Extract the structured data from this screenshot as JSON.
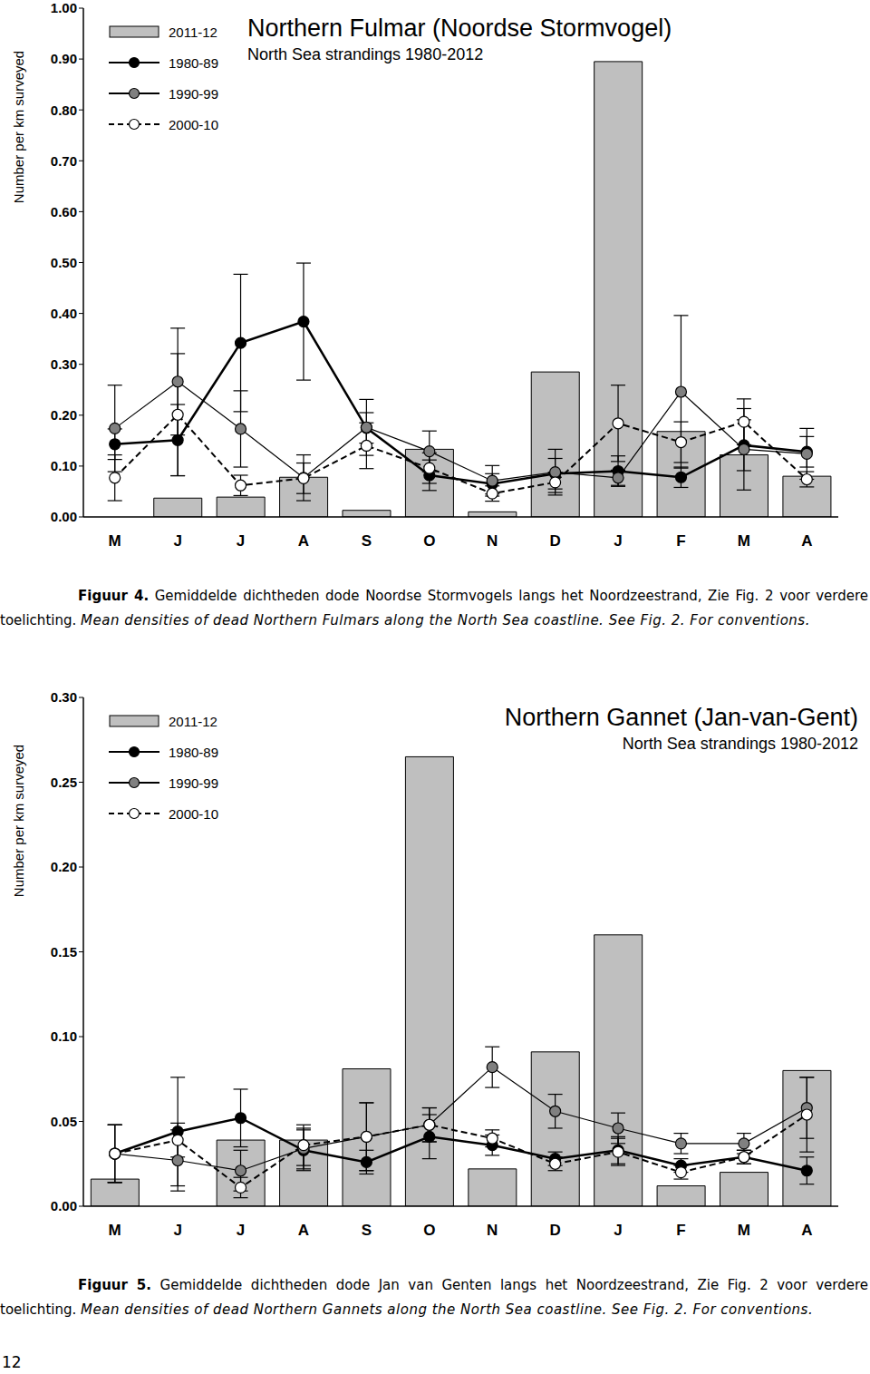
{
  "chart_data": [
    {
      "type": "bar",
      "title": "Northern Fulmar (Noordse Stormvogel)",
      "subtitle": "North Sea strandings 1980-2012",
      "y_label": "Number per km surveyed",
      "categories": [
        "M",
        "J",
        "J",
        "A",
        "S",
        "O",
        "N",
        "D",
        "J",
        "F",
        "M",
        "A"
      ],
      "ylim": [
        0,
        1
      ],
      "yticks": [
        {
          "value": 0,
          "label": "0.00"
        },
        {
          "value": 0.1,
          "label": "0.10"
        },
        {
          "value": 0.2,
          "label": "0.20"
        },
        {
          "value": 0.3,
          "label": "0.30"
        },
        {
          "value": 0.4,
          "label": "0.40"
        },
        {
          "value": 0.5,
          "label": "0.50"
        },
        {
          "value": 0.6,
          "label": "0.60"
        },
        {
          "value": 0.7,
          "label": "0.70"
        },
        {
          "value": 0.8,
          "label": "0.80"
        },
        {
          "value": 0.9,
          "label": "0.90"
        },
        {
          "value": 1,
          "label": "1.00"
        }
      ],
      "legend": "top-left",
      "grid": false,
      "series": [
        {
          "name": "2011-12",
          "type": "bar",
          "color": "#bfbfbf",
          "values": [
            null,
            0.037,
            0.039,
            0.078,
            0.013,
            0.133,
            0.01,
            0.285,
            0.895,
            0.168,
            0.122,
            0.08
          ]
        },
        {
          "name": "1980-89",
          "type": "line",
          "color": "#000000",
          "marker": "circle",
          "line_style": "solid",
          "values": [
            0.143,
            0.151,
            0.342,
            0.384,
            0.175,
            0.082,
            0.065,
            0.085,
            0.09,
            0.078,
            0.141,
            0.128
          ],
          "errors": [
            0.03,
            0.07,
            0.135,
            0.115,
            0.03,
            0.03,
            0.02,
            0.03,
            0.03,
            0.02,
            0.05,
            0.03
          ]
        },
        {
          "name": "1990-99",
          "type": "line",
          "color": "#808080",
          "marker": "circle",
          "line_style": "solid",
          "values": [
            0.174,
            0.266,
            0.173,
            0.077,
            0.176,
            0.129,
            0.071,
            0.088,
            0.077,
            0.246,
            0.133,
            0.124
          ],
          "errors": [
            0.085,
            0.105,
            0.075,
            0.045,
            0.055,
            0.04,
            0.03,
            0.045,
            0.015,
            0.15,
            0.08,
            0.05
          ]
        },
        {
          "name": "2000-10",
          "type": "line",
          "color": "#ffffff",
          "marker": "circle",
          "line_style": "dashed",
          "values": [
            0.077,
            0.201,
            0.062,
            0.076,
            0.14,
            0.096,
            0.046,
            0.068,
            0.184,
            0.147,
            0.187,
            0.074
          ],
          "errors": [
            0.045,
            0.12,
            0.02,
            0.03,
            0.045,
            0.03,
            0.015,
            0.02,
            0.075,
            0.04,
            0.045,
            0.015
          ]
        }
      ],
      "caption_label": "Figuur 4.",
      "caption": "Gemiddelde dichtheden dode Noordse Stormvogels langs het Noordzeestrand, Zie Fig. 2 voor verdere toelichting.",
      "caption_en": "Mean densities of dead Northern Fulmars along the North Sea coastline. See Fig. 2. For conventions."
    },
    {
      "type": "bar",
      "title": "Northern Gannet (Jan-van-Gent)",
      "subtitle": "North Sea strandings 1980-2012",
      "y_label": "Number per km surveyed",
      "categories": [
        "M",
        "J",
        "J",
        "A",
        "S",
        "O",
        "N",
        "D",
        "J",
        "F",
        "M",
        "A"
      ],
      "ylim": [
        0,
        0.3
      ],
      "yticks": [
        {
          "value": 0,
          "label": "0.00"
        },
        {
          "value": 0.05,
          "label": "0.05"
        },
        {
          "value": 0.1,
          "label": "0.10"
        },
        {
          "value": 0.15,
          "label": "0.15"
        },
        {
          "value": 0.2,
          "label": "0.20"
        },
        {
          "value": 0.25,
          "label": "0.25"
        },
        {
          "value": 0.3,
          "label": "0.30"
        }
      ],
      "legend": "top-left",
      "grid": false,
      "series": [
        {
          "name": "2011-12",
          "type": "bar",
          "color": "#bfbfbf",
          "values": [
            0.016,
            null,
            0.039,
            0.039,
            0.081,
            0.265,
            0.022,
            0.091,
            0.16,
            0.012,
            0.02,
            0.08
          ]
        },
        {
          "name": "1980-89",
          "type": "line",
          "color": "#000000",
          "marker": "circle",
          "line_style": "solid",
          "values": [
            0.031,
            0.044,
            0.052,
            0.033,
            0.026,
            0.041,
            0.036,
            0.028,
            0.033,
            0.024,
            0.029,
            0.021
          ],
          "errors": [
            0.017,
            0.032,
            0.017,
            0.012,
            0.007,
            0.013,
            0.006,
            0.004,
            0.008,
            0.004,
            0.004,
            0.008
          ]
        },
        {
          "name": "1990-99",
          "type": "line",
          "color": "#808080",
          "marker": "circle",
          "line_style": "solid",
          "values": [
            0.031,
            0.027,
            0.021,
            0.034,
            0.041,
            0.048,
            0.082,
            0.056,
            0.046,
            0.037,
            0.037,
            0.058
          ],
          "errors": [
            0.017,
            0.018,
            0.012,
            0.012,
            0.02,
            0.01,
            0.012,
            0.01,
            0.009,
            0.006,
            0.006,
            0.018
          ]
        },
        {
          "name": "2000-10",
          "type": "line",
          "color": "#ffffff",
          "marker": "circle",
          "line_style": "dashed",
          "values": [
            0.031,
            0.039,
            0.011,
            0.036,
            0.041,
            0.048,
            0.04,
            0.025,
            0.032,
            0.02,
            0.029,
            0.054
          ],
          "errors": [
            0.017,
            0.01,
            0.006,
            0.012,
            0.02,
            0.01,
            0.005,
            0.004,
            0.008,
            0.004,
            0.004,
            0.022
          ]
        }
      ],
      "caption_label": "Figuur 5.",
      "caption": "Gemiddelde dichtheden dode Jan van Genten langs het Noordzeestrand, Zie Fig. 2 voor verdere toelichting.",
      "caption_en": "Mean densities of dead Northern Gannets along the North Sea coastline. See Fig. 2. For conventions."
    }
  ],
  "page": "12"
}
